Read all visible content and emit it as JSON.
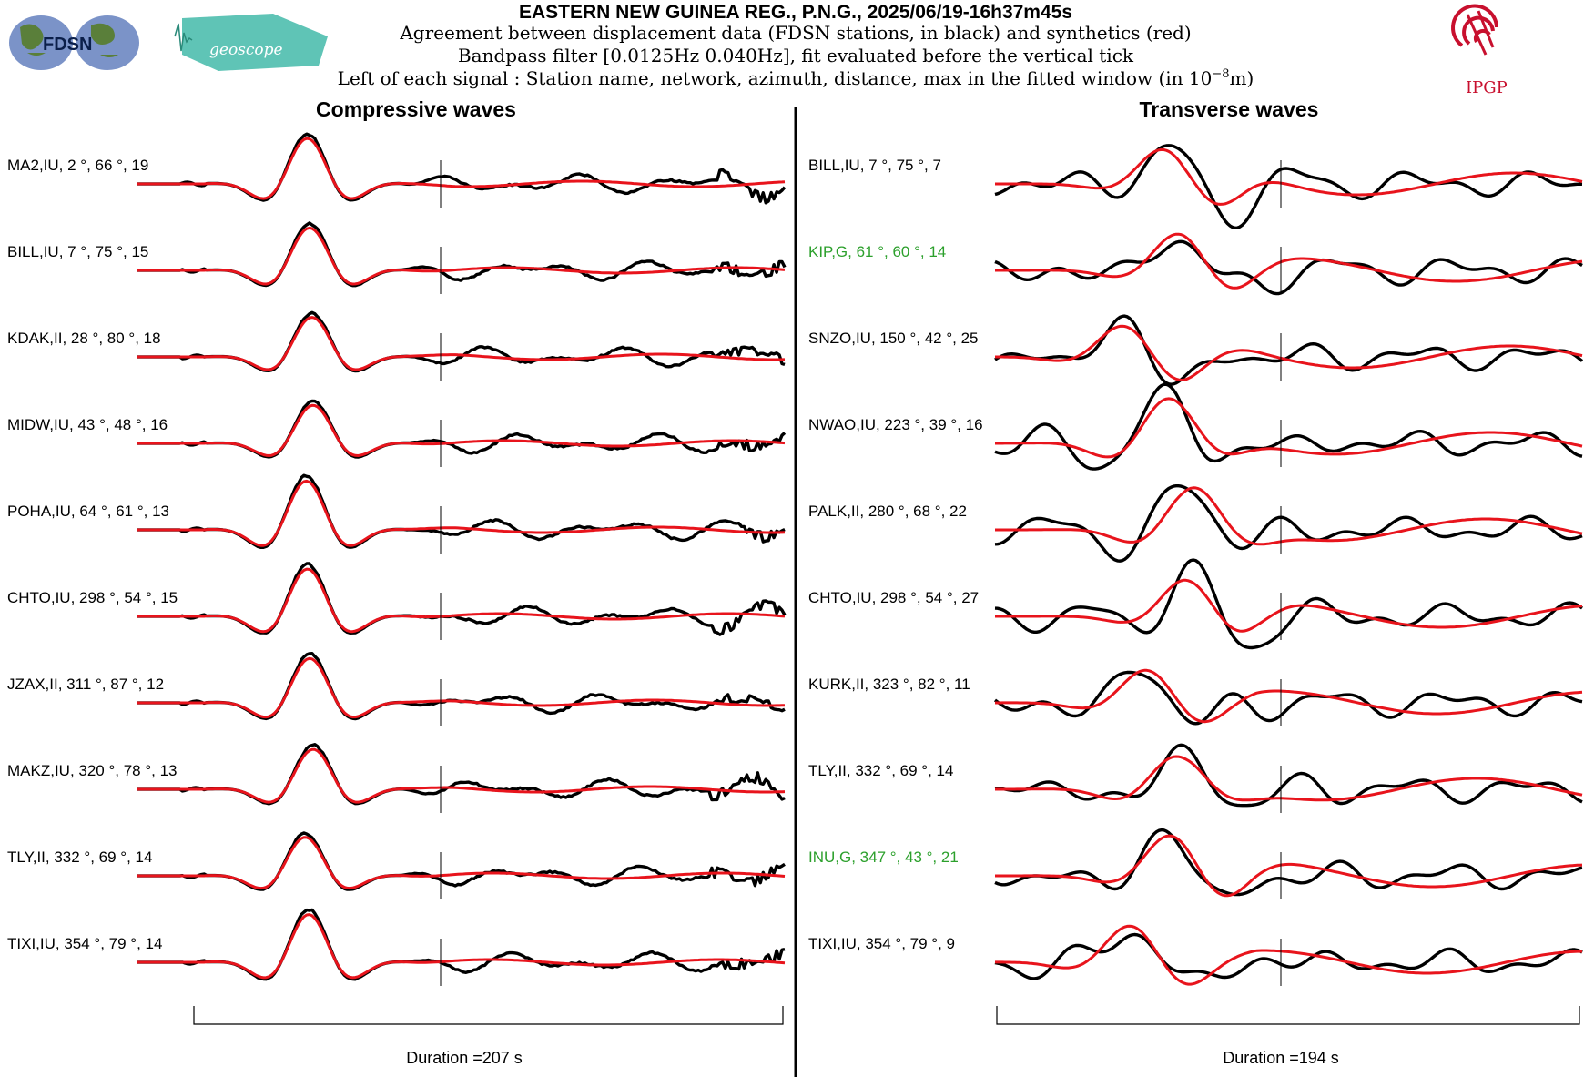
{
  "header": {
    "title": "EASTERN NEW GUINEA REG., P.N.G., 2025/06/19-16h37m45s",
    "line1": "Agreement between displacement data (FDSN stations, in black) and synthetics (red)",
    "line2": "Bandpass filter [0.0125Hz 0.040Hz], fit evaluated before the vertical tick",
    "line3_prefix": "Left of each signal : Station name, network, azimuth, distance, max in the fitted window (in 10",
    "line3_exp": "−8",
    "line3_suffix": "m)"
  },
  "logos": {
    "fdsn": "FDSN",
    "geoscope": "geoscope",
    "ipgp": "IPGP"
  },
  "colors": {
    "data": "#000000",
    "synthetic": "#e8141c",
    "highlight": "#2ca02c",
    "ipgp": "#c8102e"
  },
  "chart_data": [
    {
      "type": "line",
      "title": "Compressive waves",
      "duration_label": "Duration =207 s",
      "series_legend": [
        "data (black)",
        "synthetics (red)"
      ],
      "stations": [
        {
          "label": "MA2,IU, 2  °, 66 °, 19",
          "highlight": false,
          "seed": 3
        },
        {
          "label": "BILL,IU, 7 °, 75 °, 15",
          "highlight": false,
          "seed": 7
        },
        {
          "label": "KDAK,II, 28  °, 80 °, 18",
          "highlight": false,
          "seed": 11
        },
        {
          "label": "MIDW,IU, 43  °, 48 °, 16",
          "highlight": false,
          "seed": 13
        },
        {
          "label": "POHA,IU, 64 °, 61 °, 13",
          "highlight": false,
          "seed": 17
        },
        {
          "label": "CHTO,IU, 298  °, 54 °, 15",
          "highlight": false,
          "seed": 19
        },
        {
          "label": "JZAX,II, 311  °, 87 °, 12",
          "highlight": false,
          "seed": 23
        },
        {
          "label": "MAKZ,IU, 320  °, 78 °, 13",
          "highlight": false,
          "seed": 29
        },
        {
          "label": "TLY,II, 332  °, 69 °, 14",
          "highlight": false,
          "seed": 31
        },
        {
          "label": "TIXI,IU, 354  °, 79 °, 14",
          "highlight": false,
          "seed": 37
        }
      ]
    },
    {
      "type": "line",
      "title": "Transverse waves",
      "duration_label": "Duration =194 s",
      "series_legend": [
        "data (black)",
        "synthetics (red)"
      ],
      "stations": [
        {
          "label": "BILL,IU, 7 °, 75 °, 7",
          "highlight": false,
          "seed": 41
        },
        {
          "label": "KIP,G, 61  °, 60 °, 14",
          "highlight": true,
          "seed": 43
        },
        {
          "label": "SNZO,IU, 150  °, 42 °, 25",
          "highlight": false,
          "seed": 47
        },
        {
          "label": "NWAO,IU, 223  °, 39 °, 16",
          "highlight": false,
          "seed": 53
        },
        {
          "label": "PALK,II, 280  °, 68 °, 22",
          "highlight": false,
          "seed": 59
        },
        {
          "label": "CHTO,IU, 298  °, 54 °, 27",
          "highlight": false,
          "seed": 61
        },
        {
          "label": "KURK,II, 323  °, 82 °, 11",
          "highlight": false,
          "seed": 67
        },
        {
          "label": "TLY,II, 332  °, 69 °, 14",
          "highlight": false,
          "seed": 71
        },
        {
          "label": "INU,G, 347  °, 43 °, 21",
          "highlight": true,
          "seed": 73
        },
        {
          "label": "TIXI,IU, 354  °, 79 °, 9",
          "highlight": false,
          "seed": 79
        }
      ]
    }
  ]
}
